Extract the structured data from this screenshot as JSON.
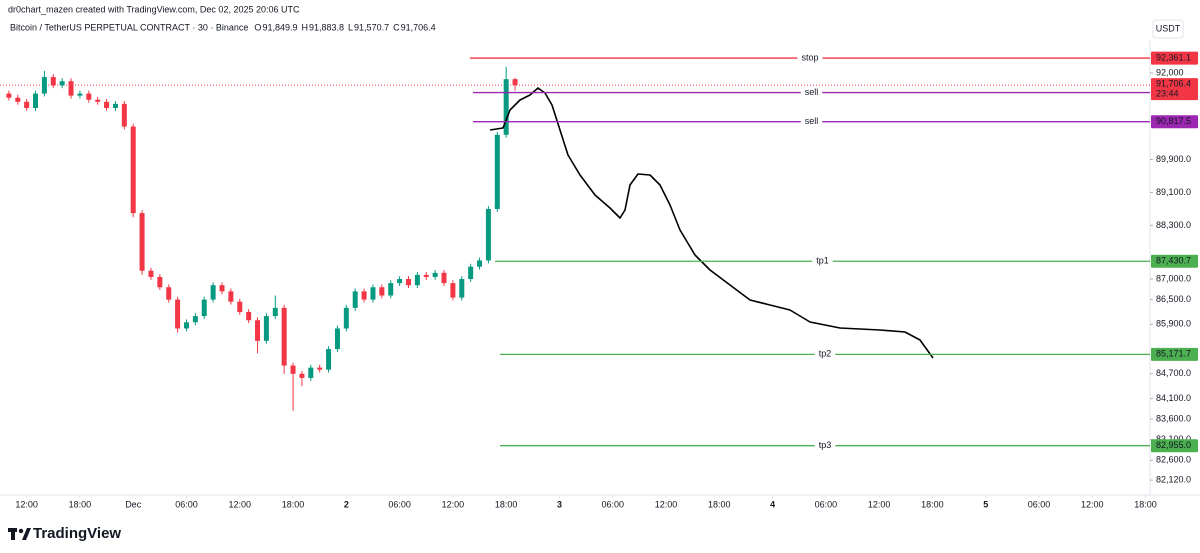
{
  "header": {
    "credit": "dr0chart_mazen created with TradingView.com, Dec 02, 2025 20:06 UTC",
    "currency": "USDT",
    "brand": "TradingView"
  },
  "chart_data": {
    "type": "candlestick",
    "title": "Bitcoin / TetherUS PERPETUAL CONTRACT · 30 · Binance",
    "ohlc_legend": [
      {
        "label": "O",
        "value": "91,849.9"
      },
      {
        "label": "H",
        "value": "91,883.8"
      },
      {
        "label": "L",
        "value": "91,570.7"
      },
      {
        "label": "C",
        "value": "91,706.4"
      }
    ],
    "up_color": "#089981",
    "down_color": "#f23645",
    "x": [
      -2,
      -1,
      0,
      1,
      2,
      3,
      4,
      5,
      6,
      7,
      8,
      9,
      10,
      11,
      12,
      13,
      14,
      15,
      16,
      17,
      18,
      19,
      20,
      21,
      22,
      23,
      24,
      25,
      26,
      27,
      28,
      29,
      30,
      31,
      32,
      33,
      34,
      35,
      36,
      37,
      38,
      39,
      40,
      41,
      42,
      43,
      44,
      45,
      46,
      47,
      48,
      49,
      50,
      51,
      52,
      53,
      54,
      55
    ],
    "open": [
      91500,
      91400,
      91300,
      91150,
      91500,
      91900,
      91700,
      91800,
      91450,
      91500,
      91350,
      91300,
      91150,
      91250,
      90700,
      88600,
      87200,
      87050,
      86800,
      86500,
      85800,
      85950,
      86100,
      86500,
      86850,
      86700,
      86450,
      86200,
      86000,
      85500,
      86100,
      86300,
      84900,
      84700,
      84600,
      84850,
      84800,
      85300,
      85800,
      86300,
      86700,
      86500,
      86800,
      86600,
      86900,
      87000,
      86850,
      87100,
      87050,
      87150,
      86900,
      86550,
      87000,
      87300,
      87450,
      88700,
      90500,
      91849.9
    ],
    "high": [
      91570,
      91470,
      91370,
      91570,
      92050,
      91970,
      91870,
      91870,
      91570,
      91570,
      91420,
      91370,
      91320,
      91320,
      90770,
      88670,
      87270,
      87120,
      86870,
      86570,
      86020,
      86170,
      86570,
      86920,
      86920,
      86770,
      86520,
      86270,
      86070,
      86170,
      86600,
      86370,
      84970,
      84770,
      84920,
      84920,
      85370,
      85870,
      86370,
      86770,
      86770,
      86870,
      86870,
      86970,
      87070,
      87070,
      87170,
      87170,
      87220,
      87220,
      86970,
      87070,
      87370,
      87520,
      88770,
      90570,
      92150,
      91883.8
    ],
    "low": [
      91330,
      91230,
      91080,
      91080,
      91430,
      91630,
      91630,
      91380,
      91380,
      91280,
      91230,
      91080,
      91080,
      90630,
      88500,
      87100,
      86980,
      86730,
      86430,
      85700,
      85730,
      85880,
      86030,
      86430,
      86630,
      86380,
      86130,
      85930,
      85200,
      85430,
      86030,
      84700,
      83800,
      84400,
      84530,
      84730,
      84730,
      85230,
      85730,
      86230,
      86430,
      86430,
      86530,
      86530,
      86830,
      86780,
      86780,
      86980,
      86980,
      86830,
      86480,
      86480,
      86930,
      87230,
      87380,
      88630,
      90430,
      91570.7
    ],
    "close": [
      91400,
      91300,
      91150,
      91500,
      91900,
      91700,
      91800,
      91450,
      91500,
      91350,
      91300,
      91150,
      91250,
      90700,
      88600,
      87200,
      87050,
      86800,
      86500,
      85800,
      85950,
      86100,
      86500,
      86850,
      86700,
      86450,
      86200,
      86000,
      85500,
      86100,
      86300,
      84900,
      84700,
      84600,
      84850,
      84800,
      85300,
      85800,
      86300,
      86700,
      86500,
      86800,
      86600,
      86900,
      87000,
      86850,
      87100,
      87050,
      87150,
      86900,
      86550,
      87000,
      87300,
      87450,
      88700,
      90500,
      91849.9,
      91706.4
    ],
    "xlim": [
      -3,
      126.5
    ],
    "xticks": [
      {
        "value": 0,
        "label": "12:00"
      },
      {
        "value": 6,
        "label": "18:00"
      },
      {
        "value": 12,
        "label": "Dec"
      },
      {
        "value": 18,
        "label": "06:00"
      },
      {
        "value": 24,
        "label": "12:00"
      },
      {
        "value": 30,
        "label": "18:00"
      },
      {
        "value": 36,
        "label": "2"
      },
      {
        "value": 42,
        "label": "06:00"
      },
      {
        "value": 48,
        "label": "12:00"
      },
      {
        "value": 54,
        "label": "18:00"
      },
      {
        "value": 60,
        "label": "3"
      },
      {
        "value": 66,
        "label": "06:00"
      },
      {
        "value": 72,
        "label": "12:00"
      },
      {
        "value": 78,
        "label": "18:00"
      },
      {
        "value": 84,
        "label": "4"
      },
      {
        "value": 90,
        "label": "06:00"
      },
      {
        "value": 96,
        "label": "12:00"
      },
      {
        "value": 102,
        "label": "18:00"
      },
      {
        "value": 108,
        "label": "5"
      },
      {
        "value": 114,
        "label": "06:00"
      },
      {
        "value": 120,
        "label": "12:00"
      },
      {
        "value": 126,
        "label": "18:00"
      }
    ],
    "ylim": [
      81880,
      92800
    ],
    "yticks": [
      {
        "value": 92000,
        "label": "92,000"
      },
      {
        "value": 89900,
        "label": "89,900.0"
      },
      {
        "value": 89100,
        "label": "89,100.0"
      },
      {
        "value": 88300,
        "label": "88,300.0"
      },
      {
        "value": 87000,
        "label": "87,000.0"
      },
      {
        "value": 86500,
        "label": "86,500.0"
      },
      {
        "value": 85900,
        "label": "85,900.0"
      },
      {
        "value": 84700,
        "label": "84,700.0"
      },
      {
        "value": 84100,
        "label": "84,100.0"
      },
      {
        "value": 83600,
        "label": "83,600.0"
      },
      {
        "value": 83100,
        "label": "83,100.0"
      },
      {
        "value": 82600,
        "label": "82,600.0"
      },
      {
        "value": 82120,
        "label": "82,120.0"
      }
    ],
    "last_price": {
      "value": 91706.4,
      "label": "91,706.4",
      "countdown": "23:44",
      "color": "#f23645"
    },
    "levels": [
      {
        "name": "stop",
        "value": 92361.1,
        "label": "92,361.1",
        "color": "#f23645"
      },
      {
        "name": "sell",
        "value": 91524.7,
        "label": "91,524.7",
        "color": "#9c27b0"
      },
      {
        "name": "sell",
        "value": 90817.5,
        "label": "90,817.5",
        "color": "#9c27b0"
      },
      {
        "name": "tp1",
        "value": 87430.7,
        "label": "87,430.7",
        "color": "#4caf50"
      },
      {
        "name": "tp2",
        "value": 85171.7,
        "label": "85,171.7",
        "color": "#4caf50"
      },
      {
        "name": "tp3",
        "value": 82955.0,
        "label": "82,955.0",
        "color": "#4caf50"
      }
    ]
  }
}
